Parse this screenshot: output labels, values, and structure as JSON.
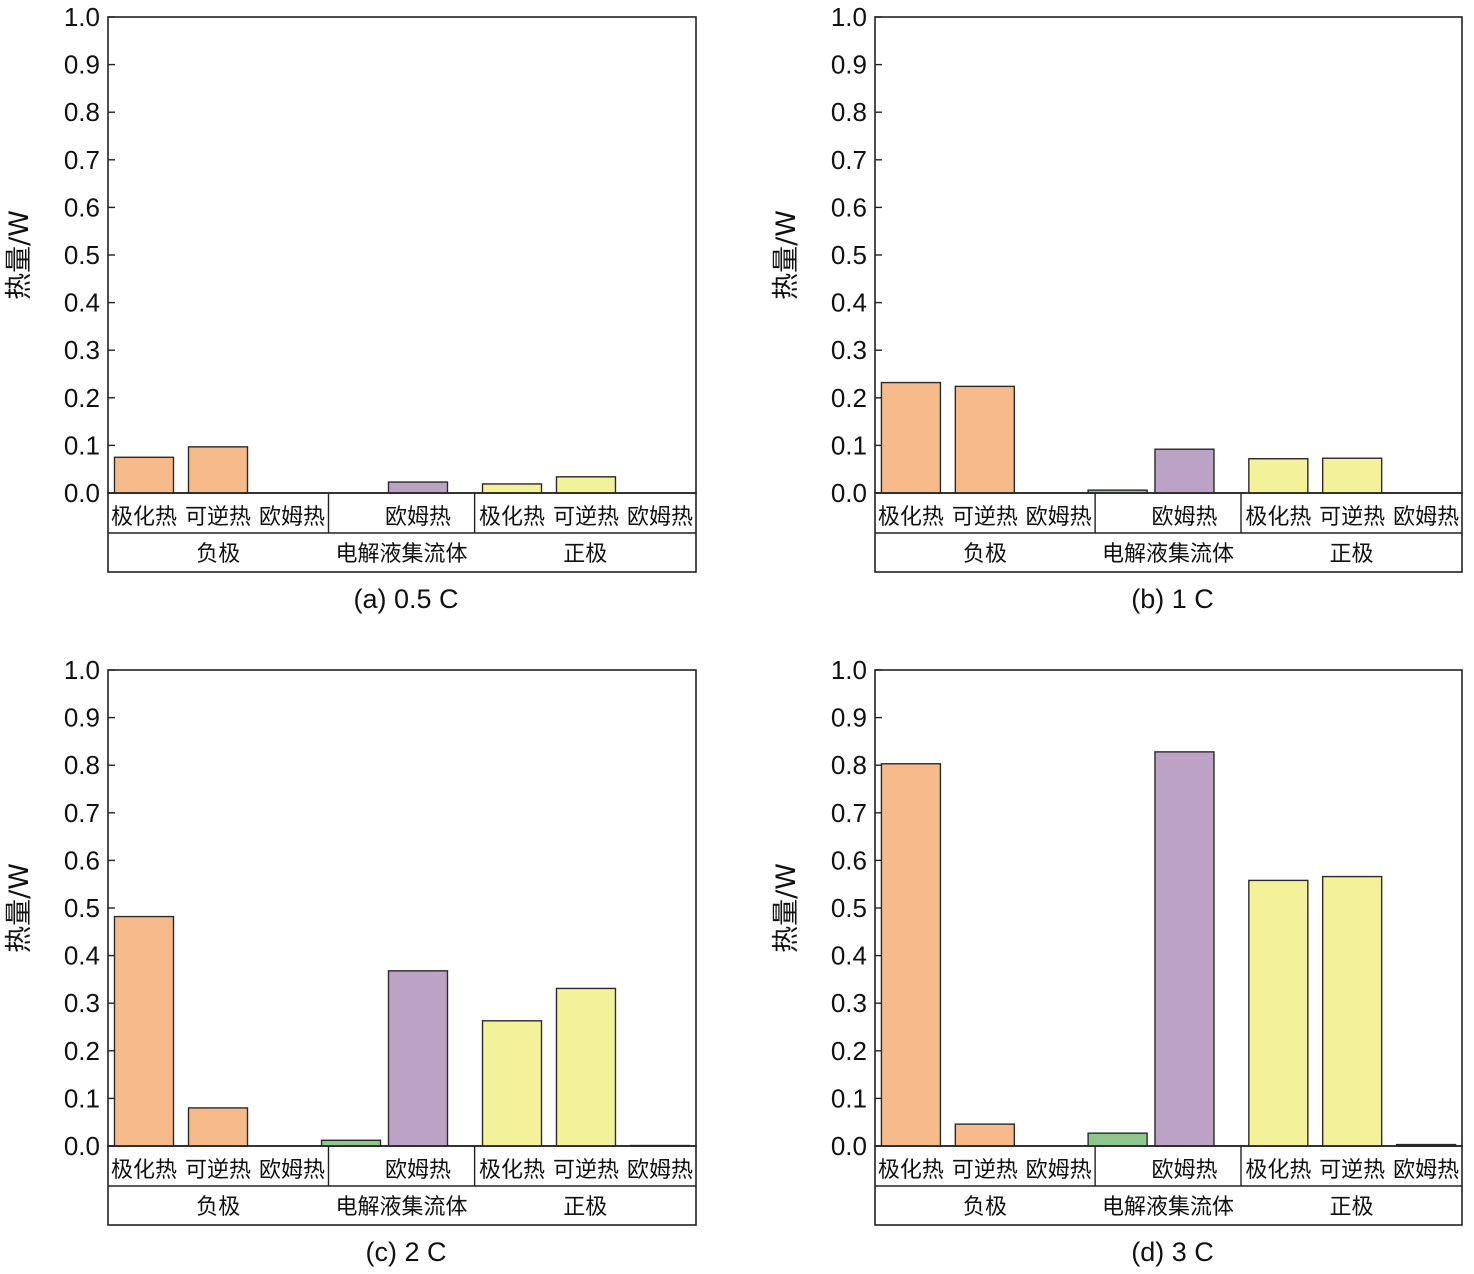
{
  "figure": {
    "colors": {
      "negative_electrode": "#f7bb8b",
      "electrolyte_collector_polar": "#8ec68e",
      "electrolyte_collector_ohmic": "#bca3c6",
      "positive_electrode": "#f3f29b",
      "bar_stroke": "#2a2a2a",
      "frame": "#222222"
    },
    "charts": [
      {
        "caption": "(a) 0.5 C",
        "ylabel": "热量/W",
        "ylim": [
          0,
          1.0
        ],
        "yticks": [
          "0.0",
          "0.1",
          "0.2",
          "0.3",
          "0.4",
          "0.5",
          "0.6",
          "0.7",
          "0.8",
          "0.9",
          "1.0"
        ],
        "sublabels": [
          "极化热",
          "可逆热",
          "欧姆热",
          "欧姆热",
          "极化热",
          "可逆热",
          "欧姆热"
        ],
        "groups": [
          "负极",
          "电解液集流体",
          "正极"
        ]
      },
      {
        "caption": "(b) 1 C",
        "ylabel": "热量/W",
        "ylim": [
          0,
          1.0
        ],
        "yticks": [
          "0.0",
          "0.1",
          "0.2",
          "0.3",
          "0.4",
          "0.5",
          "0.6",
          "0.7",
          "0.8",
          "0.9",
          "1.0"
        ],
        "sublabels": [
          "极化热",
          "可逆热",
          "欧姆热",
          "欧姆热",
          "极化热",
          "可逆热",
          "欧姆热"
        ],
        "groups": [
          "负极",
          "电解液集流体",
          "正极"
        ]
      },
      {
        "caption": "(c) 2 C",
        "ylabel": "热量/W",
        "ylim": [
          0,
          1.0
        ],
        "yticks": [
          "0.0",
          "0.1",
          "0.2",
          "0.3",
          "0.4",
          "0.5",
          "0.6",
          "0.7",
          "0.8",
          "0.9",
          "1.0"
        ],
        "sublabels": [
          "极化热",
          "可逆热",
          "欧姆热",
          "欧姆热",
          "极化热",
          "可逆热",
          "欧姆热"
        ],
        "groups": [
          "负极",
          "电解液集流体",
          "正极"
        ]
      },
      {
        "caption": "(d) 3 C",
        "ylabel": "热量/W",
        "ylim": [
          0,
          1.0
        ],
        "yticks": [
          "0.0",
          "0.1",
          "0.2",
          "0.3",
          "0.4",
          "0.5",
          "0.6",
          "0.7",
          "0.8",
          "0.9",
          "1.0"
        ],
        "sublabels": [
          "极化热",
          "可逆热",
          "欧姆热",
          "欧姆热",
          "极化热",
          "可逆热",
          "欧姆热"
        ],
        "groups": [
          "负极",
          "电解液集流体",
          "正极"
        ]
      }
    ]
  },
  "chart_data": [
    {
      "type": "bar",
      "title": "(a) 0.5 C",
      "ylabel": "热量/W",
      "ylim": [
        0,
        1.0
      ],
      "grid": false,
      "groups": [
        "负极",
        "电解液集流体",
        "正极"
      ],
      "bars": [
        {
          "group": "负极",
          "label": "极化热",
          "value": 0.075,
          "color": "#f7bb8b"
        },
        {
          "group": "负极",
          "label": "可逆热",
          "value": 0.097,
          "color": "#f7bb8b"
        },
        {
          "group": "负极",
          "label": "欧姆热",
          "value": 0.0,
          "color": "#f7bb8b"
        },
        {
          "group": "电解液集流体",
          "label": "",
          "value": 0.0,
          "color": "#8ec68e"
        },
        {
          "group": "电解液集流体",
          "label": "欧姆热",
          "value": 0.023,
          "color": "#bca3c6"
        },
        {
          "group": "正极",
          "label": "极化热",
          "value": 0.019,
          "color": "#f3f29b"
        },
        {
          "group": "正极",
          "label": "可逆热",
          "value": 0.034,
          "color": "#f3f29b"
        },
        {
          "group": "正极",
          "label": "欧姆热",
          "value": 0.0,
          "color": "#f3f29b"
        }
      ]
    },
    {
      "type": "bar",
      "title": "(b) 1 C",
      "ylabel": "热量/W",
      "ylim": [
        0,
        1.0
      ],
      "grid": false,
      "groups": [
        "负极",
        "电解液集流体",
        "正极"
      ],
      "bars": [
        {
          "group": "负极",
          "label": "极化热",
          "value": 0.232,
          "color": "#f7bb8b"
        },
        {
          "group": "负极",
          "label": "可逆热",
          "value": 0.224,
          "color": "#f7bb8b"
        },
        {
          "group": "负极",
          "label": "欧姆热",
          "value": 0.0,
          "color": "#f7bb8b"
        },
        {
          "group": "电解液集流体",
          "label": "",
          "value": 0.006,
          "color": "#8ec68e"
        },
        {
          "group": "电解液集流体",
          "label": "欧姆热",
          "value": 0.092,
          "color": "#bca3c6"
        },
        {
          "group": "正极",
          "label": "极化热",
          "value": 0.072,
          "color": "#f3f29b"
        },
        {
          "group": "正极",
          "label": "可逆热",
          "value": 0.073,
          "color": "#f3f29b"
        },
        {
          "group": "正极",
          "label": "欧姆热",
          "value": 0.0,
          "color": "#f3f29b"
        }
      ]
    },
    {
      "type": "bar",
      "title": "(c) 2 C",
      "ylabel": "热量/W",
      "ylim": [
        0,
        1.0
      ],
      "grid": false,
      "groups": [
        "负极",
        "电解液集流体",
        "正极"
      ],
      "bars": [
        {
          "group": "负极",
          "label": "极化热",
          "value": 0.482,
          "color": "#f7bb8b"
        },
        {
          "group": "负极",
          "label": "可逆热",
          "value": 0.08,
          "color": "#f7bb8b"
        },
        {
          "group": "负极",
          "label": "欧姆热",
          "value": 0.0,
          "color": "#f7bb8b"
        },
        {
          "group": "电解液集流体",
          "label": "",
          "value": 0.012,
          "color": "#8ec68e"
        },
        {
          "group": "电解液集流体",
          "label": "欧姆热",
          "value": 0.368,
          "color": "#bca3c6"
        },
        {
          "group": "正极",
          "label": "极化热",
          "value": 0.263,
          "color": "#f3f29b"
        },
        {
          "group": "正极",
          "label": "可逆热",
          "value": 0.331,
          "color": "#f3f29b"
        },
        {
          "group": "正极",
          "label": "欧姆热",
          "value": 0.001,
          "color": "#f3f29b"
        }
      ]
    },
    {
      "type": "bar",
      "title": "(d) 3 C",
      "ylabel": "热量/W",
      "ylim": [
        0,
        1.0
      ],
      "grid": false,
      "groups": [
        "负极",
        "电解液集流体",
        "正极"
      ],
      "bars": [
        {
          "group": "负极",
          "label": "极化热",
          "value": 0.803,
          "color": "#f7bb8b"
        },
        {
          "group": "负极",
          "label": "可逆热",
          "value": 0.046,
          "color": "#f7bb8b"
        },
        {
          "group": "负极",
          "label": "欧姆热",
          "value": 0.0,
          "color": "#f7bb8b"
        },
        {
          "group": "电解液集流体",
          "label": "",
          "value": 0.027,
          "color": "#8ec68e"
        },
        {
          "group": "电解液集流体",
          "label": "欧姆热",
          "value": 0.828,
          "color": "#bca3c6"
        },
        {
          "group": "正极",
          "label": "极化热",
          "value": 0.558,
          "color": "#f3f29b"
        },
        {
          "group": "正极",
          "label": "可逆热",
          "value": 0.566,
          "color": "#f3f29b"
        },
        {
          "group": "正极",
          "label": "欧姆热",
          "value": 0.003,
          "color": "#f3f29b"
        }
      ]
    }
  ]
}
